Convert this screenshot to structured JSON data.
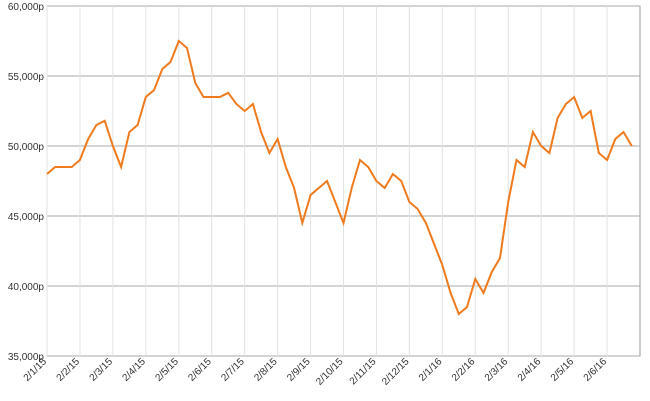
{
  "chart_data": {
    "type": "line",
    "categories": [
      "2/1/15",
      null,
      null,
      null,
      "2/2/15",
      null,
      null,
      null,
      "2/3/15",
      null,
      null,
      null,
      "2/4/15",
      null,
      null,
      null,
      "2/5/15",
      null,
      null,
      null,
      "2/6/15",
      null,
      null,
      null,
      "2/7/15",
      null,
      null,
      null,
      "2/8/15",
      null,
      null,
      null,
      "2/9/15",
      null,
      null,
      null,
      "2/10/15",
      null,
      null,
      null,
      "2/11/15",
      null,
      null,
      null,
      "2/12/15",
      null,
      null,
      null,
      "2/1/16",
      null,
      null,
      null,
      "2/2/16",
      null,
      null,
      null,
      "2/3/16",
      null,
      null,
      null,
      "2/4/16",
      null,
      null,
      null,
      "2/5/16",
      null,
      null,
      null,
      "2/6/16",
      null,
      null,
      null
    ],
    "series": [
      {
        "color": "#f07a1e",
        "values": [
          48000,
          48500,
          48500,
          48500,
          49000,
          50500,
          51500,
          51800,
          50000,
          48500,
          51000,
          51500,
          53500,
          54000,
          55500,
          56000,
          57500,
          57000,
          54500,
          53500,
          53500,
          53500,
          53800,
          53000,
          52500,
          53000,
          51000,
          49500,
          50500,
          48500,
          47000,
          44500,
          46500,
          47000,
          47500,
          46000,
          44500,
          47000,
          49000,
          48500,
          47500,
          47000,
          48000,
          47500,
          46000,
          45500,
          44500,
          43000,
          41500,
          39500,
          38000,
          38500,
          40500,
          39500,
          41000,
          42000,
          46000,
          49000,
          48500,
          51000,
          50000,
          49500,
          52000,
          53000,
          53500,
          52000,
          52500,
          49500,
          49000,
          50500,
          51000,
          50000
        ]
      }
    ],
    "ylim": [
      35000,
      60000
    ],
    "yticks": [
      {
        "value": 35000,
        "label": "35,000p"
      },
      {
        "value": 40000,
        "label": "40,000p"
      },
      {
        "value": 45000,
        "label": "45,000p"
      },
      {
        "value": 50000,
        "label": "50,000p"
      },
      {
        "value": 55000,
        "label": "55,000p"
      },
      {
        "value": 60000,
        "label": "60,000p"
      }
    ],
    "grid": true
  }
}
